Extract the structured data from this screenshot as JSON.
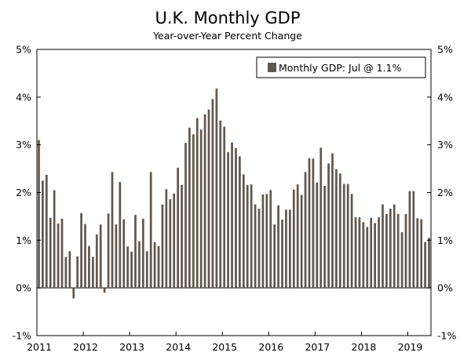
{
  "chart_data": {
    "type": "bar",
    "title": "U.K. Monthly GDP",
    "subtitle": "Year-over-Year Percent Change",
    "xlabel": "",
    "ylabel": "",
    "ylim": [
      -1,
      5
    ],
    "yticks": [
      "-1%",
      "0%",
      "1%",
      "2%",
      "3%",
      "4%",
      "5%"
    ],
    "xticks": [
      "2011",
      "2012",
      "2013",
      "2014",
      "2015",
      "2016",
      "2017",
      "2018",
      "2019"
    ],
    "start": "Jan 2011",
    "end": "Jul 2019",
    "legend": "Monthly GDP: Jul @ 1.1%",
    "legend_position": "top-right",
    "bar_color": "#62574d",
    "values": [
      3.1,
      2.25,
      2.37,
      1.47,
      2.05,
      1.35,
      1.45,
      0.65,
      0.77,
      -0.22,
      0.66,
      1.57,
      1.34,
      0.88,
      0.65,
      1.12,
      1.33,
      -0.1,
      1.56,
      2.43,
      1.33,
      2.22,
      1.44,
      0.87,
      0.76,
      1.53,
      0.98,
      1.45,
      0.77,
      2.43,
      0.96,
      0.88,
      1.75,
      2.07,
      1.86,
      1.98,
      2.52,
      2.16,
      3.04,
      3.36,
      3.22,
      3.56,
      3.32,
      3.64,
      3.74,
      3.96,
      4.18,
      3.51,
      3.38,
      2.85,
      3.05,
      2.93,
      2.76,
      2.38,
      2.16,
      2.17,
      1.75,
      1.66,
      1.96,
      1.97,
      2.05,
      1.33,
      1.73,
      1.43,
      1.64,
      1.64,
      2.06,
      2.17,
      1.95,
      2.43,
      2.72,
      2.71,
      2.21,
      2.94,
      2.14,
      2.61,
      2.82,
      2.49,
      2.4,
      2.18,
      2.18,
      1.97,
      1.48,
      1.48,
      1.38,
      1.28,
      1.47,
      1.36,
      1.48,
      1.75,
      1.55,
      1.66,
      1.75,
      1.55,
      1.17,
      1.55,
      2.03,
      2.03,
      1.46,
      1.44,
      0.96,
      1.05
    ]
  }
}
